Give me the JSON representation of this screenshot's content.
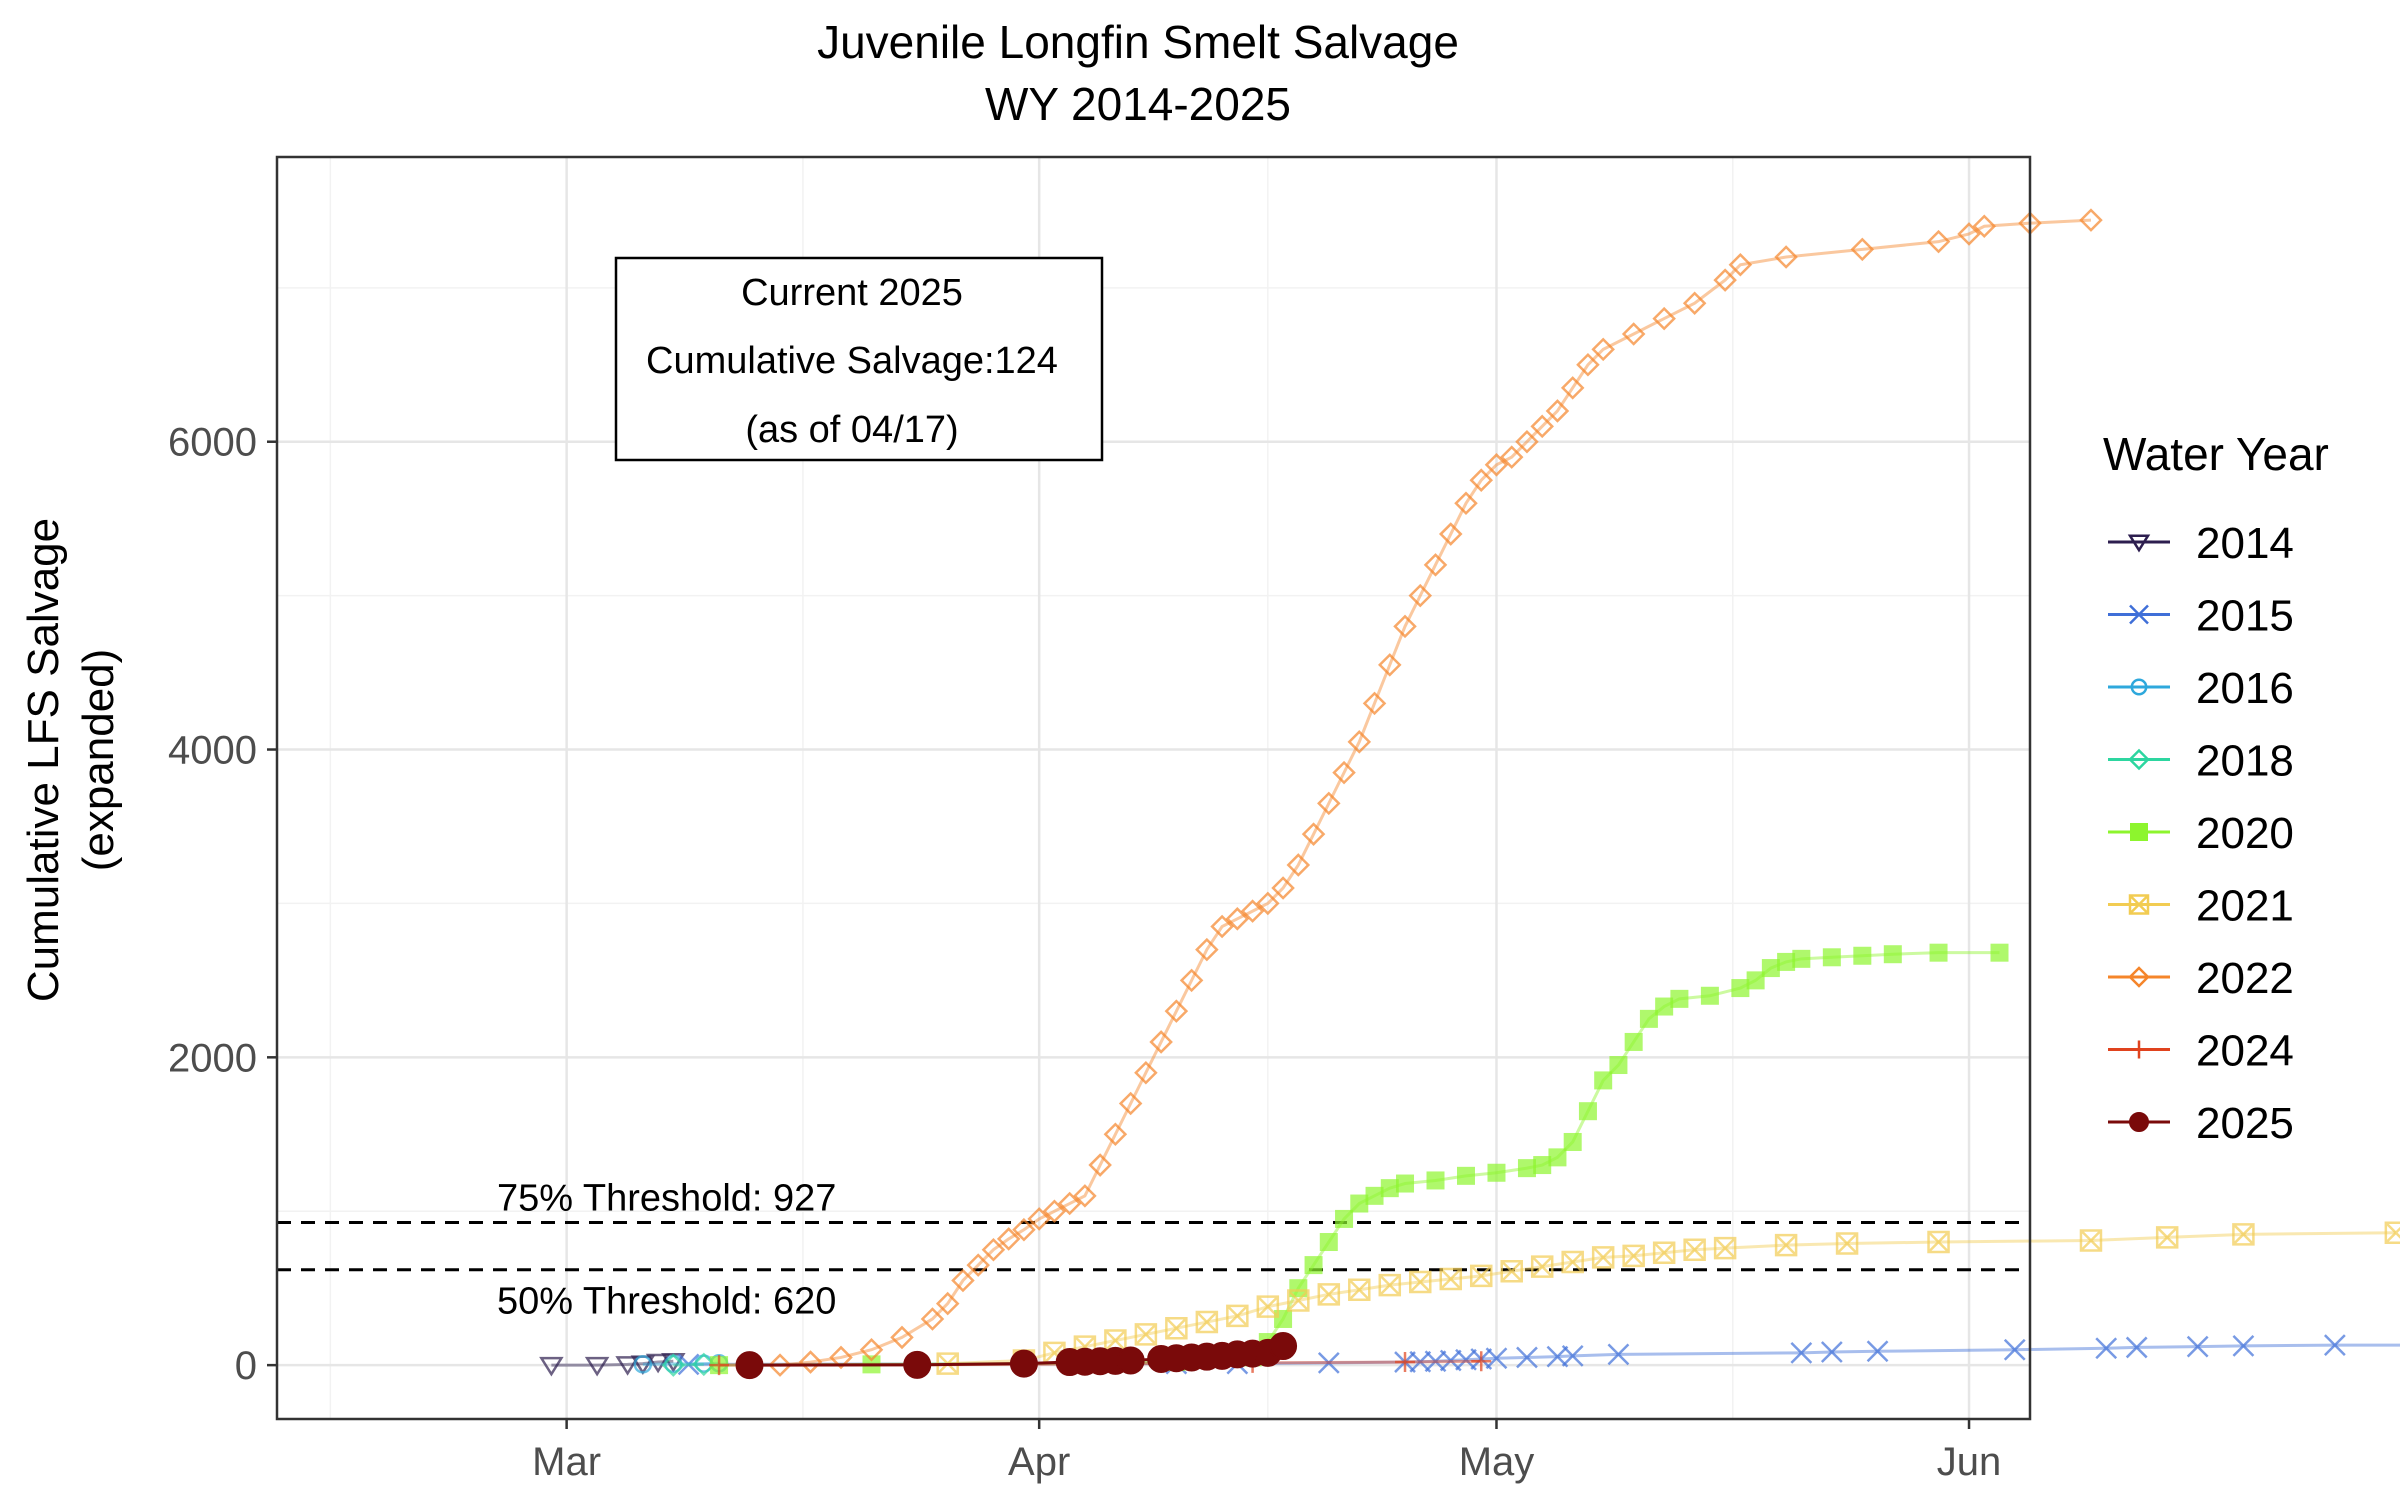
{
  "chart_data": {
    "type": "line",
    "title": "Juvenile Longfin Smelt Salvage",
    "subtitle": "WY 2014-2025",
    "xlabel": "",
    "ylabel": "Cumulative LFS Salvage",
    "ylabel2": "(expanded)",
    "x_ticks": [
      "Mar",
      "Apr",
      "May",
      "Jun"
    ],
    "x_ticks_day": [
      60,
      91,
      121,
      152
    ],
    "xlim_day": [
      41,
      156
    ],
    "y_ticks": [
      0,
      2000,
      4000,
      6000
    ],
    "ylim": [
      -350,
      7850
    ],
    "grid": true,
    "legend_title": "Water Year",
    "legend_position": "right",
    "annotation": {
      "line1": "Current 2025",
      "line2": "Cumulative Salvage:124",
      "line3": "(as of 04/17)"
    },
    "thresholds": [
      {
        "label": "75% Threshold: 927",
        "value": 927
      },
      {
        "label": "50% Threshold: 620",
        "value": 620
      }
    ],
    "series": [
      {
        "name": "2014",
        "color": "#2d1e4f",
        "marker": "triangle-down",
        "points": [
          [
            59,
            0
          ],
          [
            62,
            0
          ],
          [
            64,
            5
          ],
          [
            65,
            10
          ],
          [
            66,
            20
          ],
          [
            67,
            25
          ]
        ]
      },
      {
        "name": "2015",
        "color": "#3f6fd8",
        "marker": "x",
        "points": [
          [
            68,
            5
          ],
          [
            100,
            10
          ],
          [
            104,
            10
          ],
          [
            110,
            15
          ],
          [
            115,
            20
          ],
          [
            116,
            22
          ],
          [
            117,
            25
          ],
          [
            118,
            30
          ],
          [
            119,
            35
          ],
          [
            120,
            40
          ],
          [
            121,
            45
          ],
          [
            123,
            50
          ],
          [
            125,
            55
          ],
          [
            126,
            60
          ],
          [
            129,
            70
          ],
          [
            141,
            80
          ],
          [
            143,
            85
          ],
          [
            146,
            90
          ],
          [
            155,
            100
          ],
          [
            161,
            110
          ],
          [
            163,
            115
          ],
          [
            167,
            120
          ],
          [
            170,
            125
          ],
          [
            176,
            130
          ],
          [
            185,
            130
          ]
        ]
      },
      {
        "name": "2016",
        "color": "#2ea8dc",
        "marker": "circle",
        "points": [
          [
            65,
            5
          ],
          [
            67,
            8
          ],
          [
            69,
            10
          ],
          [
            70,
            12
          ]
        ]
      },
      {
        "name": "2018",
        "color": "#2dd6a0",
        "marker": "diamond",
        "points": [
          [
            67,
            0
          ],
          [
            69,
            5
          ]
        ]
      },
      {
        "name": "2020",
        "color": "#8df52d",
        "marker": "square",
        "points": [
          [
            70,
            0
          ],
          [
            80,
            5
          ],
          [
            90,
            10
          ],
          [
            100,
            20
          ],
          [
            105,
            50
          ],
          [
            106,
            150
          ],
          [
            107,
            300
          ],
          [
            108,
            500
          ],
          [
            109,
            650
          ],
          [
            110,
            800
          ],
          [
            111,
            950
          ],
          [
            112,
            1050
          ],
          [
            113,
            1100
          ],
          [
            114,
            1150
          ],
          [
            115,
            1180
          ],
          [
            117,
            1200
          ],
          [
            119,
            1230
          ],
          [
            121,
            1250
          ],
          [
            123,
            1280
          ],
          [
            124,
            1300
          ],
          [
            125,
            1350
          ],
          [
            126,
            1450
          ],
          [
            127,
            1650
          ],
          [
            128,
            1850
          ],
          [
            129,
            1950
          ],
          [
            130,
            2100
          ],
          [
            131,
            2250
          ],
          [
            132,
            2330
          ],
          [
            133,
            2380
          ],
          [
            135,
            2400
          ],
          [
            137,
            2450
          ],
          [
            138,
            2500
          ],
          [
            139,
            2580
          ],
          [
            140,
            2620
          ],
          [
            141,
            2640
          ],
          [
            143,
            2650
          ],
          [
            145,
            2660
          ],
          [
            147,
            2670
          ],
          [
            150,
            2680
          ],
          [
            154,
            2680
          ]
        ]
      },
      {
        "name": "2021",
        "color": "#f2cc52",
        "marker": "square-x",
        "points": [
          [
            85,
            10
          ],
          [
            90,
            30
          ],
          [
            92,
            80
          ],
          [
            94,
            120
          ],
          [
            96,
            160
          ],
          [
            98,
            200
          ],
          [
            100,
            240
          ],
          [
            102,
            280
          ],
          [
            104,
            320
          ],
          [
            106,
            380
          ],
          [
            108,
            420
          ],
          [
            110,
            460
          ],
          [
            112,
            490
          ],
          [
            114,
            520
          ],
          [
            116,
            540
          ],
          [
            118,
            560
          ],
          [
            120,
            580
          ],
          [
            122,
            610
          ],
          [
            124,
            640
          ],
          [
            126,
            670
          ],
          [
            128,
            700
          ],
          [
            130,
            710
          ],
          [
            132,
            730
          ],
          [
            134,
            750
          ],
          [
            136,
            760
          ],
          [
            140,
            780
          ],
          [
            144,
            790
          ],
          [
            150,
            800
          ],
          [
            160,
            810
          ],
          [
            165,
            830
          ],
          [
            170,
            850
          ],
          [
            180,
            860
          ]
        ]
      },
      {
        "name": "2022",
        "color": "#f5852a",
        "marker": "diamond",
        "points": [
          [
            74,
            0
          ],
          [
            76,
            20
          ],
          [
            78,
            50
          ],
          [
            80,
            100
          ],
          [
            82,
            180
          ],
          [
            84,
            300
          ],
          [
            85,
            400
          ],
          [
            86,
            550
          ],
          [
            87,
            650
          ],
          [
            88,
            750
          ],
          [
            89,
            820
          ],
          [
            90,
            880
          ],
          [
            91,
            950
          ],
          [
            92,
            1000
          ],
          [
            93,
            1050
          ],
          [
            94,
            1100
          ],
          [
            95,
            1300
          ],
          [
            96,
            1500
          ],
          [
            97,
            1700
          ],
          [
            98,
            1900
          ],
          [
            99,
            2100
          ],
          [
            100,
            2300
          ],
          [
            101,
            2500
          ],
          [
            102,
            2700
          ],
          [
            103,
            2850
          ],
          [
            104,
            2900
          ],
          [
            105,
            2950
          ],
          [
            106,
            3000
          ],
          [
            107,
            3100
          ],
          [
            108,
            3250
          ],
          [
            109,
            3450
          ],
          [
            110,
            3650
          ],
          [
            111,
            3850
          ],
          [
            112,
            4050
          ],
          [
            113,
            4300
          ],
          [
            114,
            4550
          ],
          [
            115,
            4800
          ],
          [
            116,
            5000
          ],
          [
            117,
            5200
          ],
          [
            118,
            5400
          ],
          [
            119,
            5600
          ],
          [
            120,
            5750
          ],
          [
            121,
            5850
          ],
          [
            122,
            5900
          ],
          [
            123,
            6000
          ],
          [
            124,
            6100
          ],
          [
            125,
            6200
          ],
          [
            126,
            6350
          ],
          [
            127,
            6500
          ],
          [
            128,
            6600
          ],
          [
            130,
            6700
          ],
          [
            132,
            6800
          ],
          [
            134,
            6900
          ],
          [
            136,
            7050
          ],
          [
            137,
            7150
          ],
          [
            140,
            7200
          ],
          [
            145,
            7250
          ],
          [
            150,
            7300
          ],
          [
            152,
            7350
          ],
          [
            153,
            7400
          ],
          [
            156,
            7420
          ],
          [
            160,
            7440
          ]
        ]
      },
      {
        "name": "2024",
        "color": "#e0431e",
        "marker": "plus",
        "points": [
          [
            70,
            0
          ],
          [
            90,
            5
          ],
          [
            105,
            15
          ],
          [
            115,
            20
          ],
          [
            120,
            25
          ]
        ]
      },
      {
        "name": "2025",
        "color": "#7a0a0a",
        "marker": "circle-filled",
        "points": [
          [
            72,
            0
          ],
          [
            83,
            2
          ],
          [
            90,
            10
          ],
          [
            93,
            20
          ],
          [
            94,
            22
          ],
          [
            95,
            25
          ],
          [
            96,
            28
          ],
          [
            97,
            30
          ],
          [
            99,
            40
          ],
          [
            100,
            45
          ],
          [
            101,
            50
          ],
          [
            102,
            55
          ],
          [
            103,
            60
          ],
          [
            104,
            70
          ],
          [
            105,
            75
          ],
          [
            106,
            80
          ],
          [
            107,
            124
          ]
        ]
      }
    ]
  }
}
